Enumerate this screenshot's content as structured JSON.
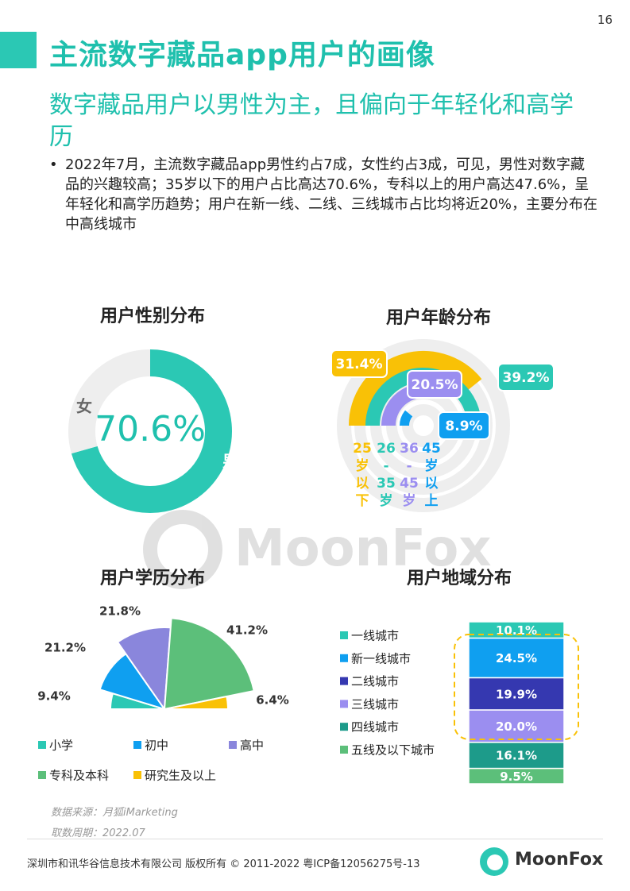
{
  "page_number": "16",
  "title": "主流数字藏品app用户的画像",
  "subtitle": "数字藏品用户以男性为主，且偏向于年轻化和高学历",
  "bullet": "2022年7月，主流数字藏品app男性约占7成，女性约占3成，可见，男性对数字藏品的兴趣较高；35岁以下的用户占比高达70.6%，专科以上的用户高达47.6%，呈年轻化和高学历趋势；用户在新一线、二线、三线城市占比均将近20%，主要分布在中高线城市",
  "watermark": "MoonFox",
  "colors": {
    "teal": "#2bc8b4",
    "yellow": "#f9c106",
    "purple": "#9b8ef0",
    "blue": "#0f9ff0",
    "grey": "#eeeeee",
    "navy": "#3538b0",
    "dark_teal": "#1d9b8a",
    "green": "#5cbf7a"
  },
  "chart_data": [
    {
      "type": "pie",
      "title": "用户性别分布",
      "center_label": "70.6%",
      "categories": [
        "男",
        "女"
      ],
      "values": [
        70.6,
        29.4
      ],
      "colors": [
        "#2bc8b4",
        "#eeeeee"
      ]
    },
    {
      "type": "radial-bar",
      "title": "用户年龄分布",
      "categories": [
        "25岁以下",
        "26-35岁",
        "36-45岁",
        "45岁以上"
      ],
      "category_chars": [
        [
          "25",
          "岁",
          "以",
          "下"
        ],
        [
          "26",
          "-",
          "35",
          "岁"
        ],
        [
          "36",
          "-",
          "45",
          "岁"
        ],
        [
          "45",
          "岁",
          "以",
          "上"
        ]
      ],
      "values": [
        31.4,
        39.2,
        20.5,
        8.9
      ],
      "labels": [
        "31.4%",
        "39.2%",
        "20.5%",
        "8.9%"
      ],
      "colors": [
        "#f9c106",
        "#2bc8b4",
        "#9b8ef0",
        "#0f9ff0"
      ]
    },
    {
      "type": "pie",
      "subtype": "half-pie",
      "title": "用户学历分布",
      "categories": [
        "小学",
        "初中",
        "高中",
        "专科及本科",
        "研究生及以上"
      ],
      "values": [
        9.4,
        21.2,
        21.8,
        41.2,
        6.4
      ],
      "labels": [
        "9.4%",
        "21.2%",
        "21.8%",
        "41.2%",
        "6.4%"
      ],
      "colors": [
        "#2bc8b4",
        "#0f9ff0",
        "#8a86dc",
        "#5cbf7a",
        "#f9c106"
      ]
    },
    {
      "type": "bar",
      "subtype": "stacked-100",
      "title": "用户地域分布",
      "categories": [
        "一线城市",
        "新一线城市",
        "二线城市",
        "三线城市",
        "四线城市",
        "五线及以下城市"
      ],
      "values": [
        10.1,
        24.5,
        19.9,
        20.0,
        16.1,
        9.5
      ],
      "labels": [
        "10.1%",
        "24.5%",
        "19.9%",
        "20.0%",
        "16.1%",
        "9.5%"
      ],
      "colors": [
        "#2bc8b4",
        "#0f9ff0",
        "#3538b0",
        "#9b8ef0",
        "#1d9b8a",
        "#5cbf7a"
      ]
    }
  ],
  "source": "数据来源：月狐iMarketing",
  "period": "取数周期：2022.07",
  "footer": "深圳市和讯华谷信息技术有限公司 版权所有 © 2011-2022 粤ICP备12056275号-13",
  "logo_text": "MoonFox"
}
